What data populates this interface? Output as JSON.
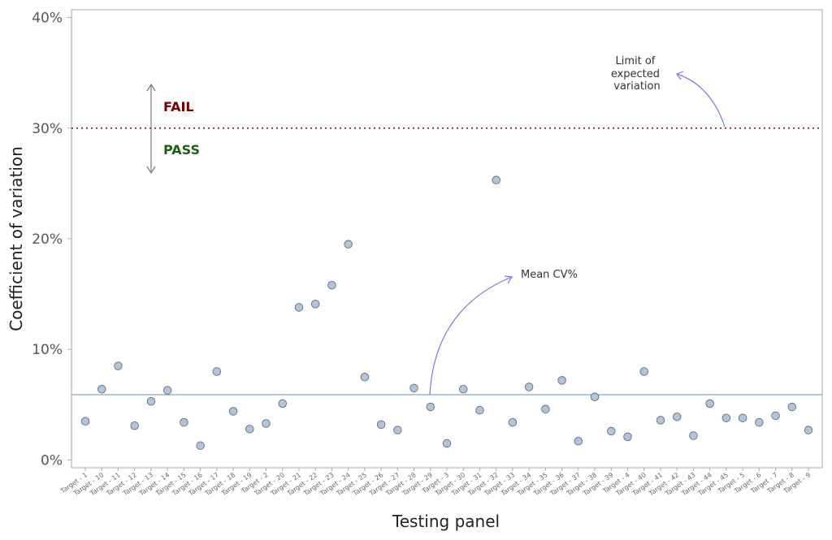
{
  "chart_data": {
    "type": "scatter",
    "xlabel": "Testing panel",
    "ylabel": "Coefficient of variation",
    "ylim": [
      -0.7,
      40.7
    ],
    "yticks": [
      0,
      10,
      20,
      30,
      40
    ],
    "ytick_labels": [
      "0%",
      "10%",
      "20%",
      "30%",
      "40%"
    ],
    "grid": false,
    "categories": [
      "Target - 1",
      "Target - 10",
      "Target - 11",
      "Target - 12",
      "Target - 13",
      "Target - 14",
      "Target - 15",
      "Target - 16",
      "Target - 17",
      "Target - 18",
      "Target - 19",
      "Target - 2",
      "Target - 20",
      "Target - 21",
      "Target - 22",
      "Target - 23",
      "Target - 24",
      "Target - 25",
      "Target - 26",
      "Target - 27",
      "Target - 28",
      "Target - 29",
      "Target - 3",
      "Target - 30",
      "Target - 31",
      "Target - 32",
      "Target - 33",
      "Target - 34",
      "Target - 35",
      "Target - 36",
      "Target - 37",
      "Target - 38",
      "Target - 39",
      "Target - 4",
      "Target - 40",
      "Target - 41",
      "Target - 42",
      "Target - 43",
      "Target - 44",
      "Target - 45",
      "Target - 5",
      "Target - 6",
      "Target - 7",
      "Target - 8",
      "Target - 9"
    ],
    "values": [
      3.5,
      6.4,
      8.5,
      3.1,
      5.3,
      6.3,
      3.4,
      1.3,
      8.0,
      4.4,
      2.8,
      3.3,
      5.1,
      13.8,
      14.1,
      15.8,
      19.5,
      7.5,
      3.2,
      2.7,
      6.5,
      4.8,
      1.5,
      6.4,
      4.5,
      25.3,
      3.4,
      6.6,
      4.6,
      7.2,
      1.7,
      5.7,
      2.6,
      2.1,
      8.0,
      3.6,
      3.9,
      2.2,
      5.1,
      3.8,
      3.8,
      3.4,
      4.0,
      4.8,
      2.7
    ],
    "mean_cv": 5.9,
    "limit": 30,
    "annotations": {
      "limit_label": [
        "Limit of",
        "expected",
        "variation"
      ],
      "mean_label": "Mean CV%",
      "fail_label": "FAIL",
      "pass_label": "PASS"
    },
    "colors": {
      "point_fill": "#b4c4d8",
      "point_stroke": "#5f6f82",
      "mean_line": "#8fb0c8",
      "limit_line": "#8b1a1a",
      "fail": "#7a0000",
      "pass": "#1d5e17",
      "arrow": "#7878ee",
      "double_arrow": "#777777",
      "frame": "#aaaaaa"
    }
  }
}
